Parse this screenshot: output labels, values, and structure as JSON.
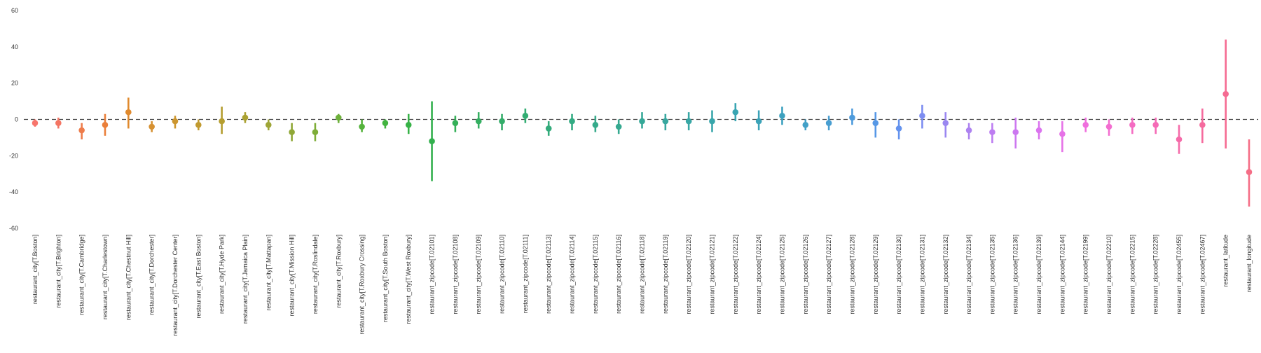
{
  "chart_data": {
    "type": "scatter",
    "title": "",
    "xlabel": "",
    "ylabel": "",
    "ylim": [
      -60,
      60
    ],
    "yticks": [
      -60,
      -40,
      -20,
      0,
      20,
      40,
      60
    ],
    "reference_line": 0,
    "grid": false,
    "legend": "none",
    "categories": [
      "restaurant_city[T.Boston]",
      "restaurant_city[T.Brighton]",
      "restaurant_city[T.Cambridge]",
      "restaurant_city[T.Charlestown]",
      "restaurant_city[T.Chestnut Hill]",
      "restaurant_city[T.Dorchester]",
      "restaurant_city[T.Dorchester Center]",
      "restaurant_city[T.East Boston]",
      "restaurant_city[T.Hyde Park]",
      "restaurant_city[T.Jamaica Plain]",
      "restaurant_city[T.Mattapan]",
      "restaurant_city[T.Mission Hill]",
      "restaurant_city[T.Roslindale]",
      "restaurant_city[T.Roxbury]",
      "restaurant_city[T.Roxbury Crossing]",
      "restaurant_city[T.South Boston]",
      "restaurant_city[T.West Roxbury]",
      "restaurant_zipcode[T.02101]",
      "restaurant_zipcode[T.02108]",
      "restaurant_zipcode[T.02109]",
      "restaurant_zipcode[T.02110]",
      "restaurant_zipcode[T.02111]",
      "restaurant_zipcode[T.02113]",
      "restaurant_zipcode[T.02114]",
      "restaurant_zipcode[T.02115]",
      "restaurant_zipcode[T.02116]",
      "restaurant_zipcode[T.02118]",
      "restaurant_zipcode[T.02119]",
      "restaurant_zipcode[T.02120]",
      "restaurant_zipcode[T.02121]",
      "restaurant_zipcode[T.02122]",
      "restaurant_zipcode[T.02124]",
      "restaurant_zipcode[T.02125]",
      "restaurant_zipcode[T.02126]",
      "restaurant_zipcode[T.02127]",
      "restaurant_zipcode[T.02128]",
      "restaurant_zipcode[T.02129]",
      "restaurant_zipcode[T.02130]",
      "restaurant_zipcode[T.02131]",
      "restaurant_zipcode[T.02132]",
      "restaurant_zipcode[T.02134]",
      "restaurant_zipcode[T.02135]",
      "restaurant_zipcode[T.02136]",
      "restaurant_zipcode[T.02139]",
      "restaurant_zipcode[T.02144]",
      "restaurant_zipcode[T.02199]",
      "restaurant_zipcode[T.02210]",
      "restaurant_zipcode[T.02215]",
      "restaurant_zipcode[T.02228]",
      "restaurant_zipcode[T.02455]",
      "restaurant_zipcode[T.02467]",
      "restaurant_latitude",
      "restaurant_longitude"
    ],
    "values": [
      -2,
      -2,
      -6,
      -3,
      4,
      -4,
      -1,
      -3,
      -1,
      1,
      -3,
      -7,
      -7,
      1,
      -4,
      -2,
      -3,
      -12,
      -2,
      -1,
      -1,
      2,
      -5,
      -1,
      -3,
      -4,
      -1,
      -1,
      -1,
      -1,
      4,
      -1,
      2,
      -3,
      -2,
      1,
      -2,
      -5,
      2,
      -2,
      -6,
      -7,
      -7,
      -6,
      -8,
      -3,
      -4,
      -3,
      -3,
      -11,
      -3,
      14,
      -29
    ],
    "ci_low": [
      -4,
      -5,
      -11,
      -9,
      -5,
      -7,
      -5,
      -6,
      -8,
      -2,
      -6,
      -12,
      -12,
      -2,
      -7,
      -5,
      -8,
      -34,
      -7,
      -5,
      -6,
      -2,
      -9,
      -6,
      -7,
      -8,
      -5,
      -6,
      -6,
      -7,
      -1,
      -6,
      -3,
      -6,
      -6,
      -3,
      -10,
      -11,
      -5,
      -10,
      -11,
      -13,
      -16,
      -11,
      -18,
      -7,
      -9,
      -8,
      -8,
      -19,
      -13,
      -16,
      -48
    ],
    "ci_high": [
      0,
      1,
      -2,
      3,
      12,
      -1,
      2,
      0,
      7,
      4,
      0,
      -2,
      -2,
      3,
      0,
      0,
      3,
      10,
      2,
      4,
      3,
      6,
      -1,
      3,
      2,
      0,
      4,
      3,
      4,
      5,
      9,
      5,
      7,
      0,
      2,
      6,
      4,
      0,
      8,
      4,
      -2,
      -2,
      1,
      -1,
      -1,
      1,
      0,
      1,
      1,
      -3,
      6,
      44,
      -11
    ],
    "colors": [
      "#f7756c",
      "#f47563",
      "#ee7c4b",
      "#ea7f3a",
      "#e08a2e",
      "#d69132",
      "#cc962f",
      "#c19a2f",
      "#b59e30",
      "#aaa132",
      "#9ea536",
      "#90a837",
      "#7ead38",
      "#6db03a",
      "#55b33c",
      "#42b440",
      "#36b246",
      "#33b04e",
      "#34b058",
      "#34af61",
      "#34ad6a",
      "#33ad73",
      "#33ab7b",
      "#33ab83",
      "#35aa8a",
      "#35a990",
      "#36a898",
      "#37a79f",
      "#38a7a5",
      "#39a6ab",
      "#39a5b2",
      "#3ba3b8",
      "#3da1bf",
      "#42a0c7",
      "#489ed1",
      "#4e9bdc",
      "#5698e6",
      "#6392ee",
      "#7d8df1",
      "#9a87f1",
      "#ad82f0",
      "#bd7df1",
      "#cc78f0",
      "#db74ef",
      "#e672e7",
      "#ef6fdd",
      "#f36dd0",
      "#f46cc2",
      "#f56bb6",
      "#f56ba9",
      "#f56b9e",
      "#f56b92",
      "#f56d86"
    ]
  }
}
